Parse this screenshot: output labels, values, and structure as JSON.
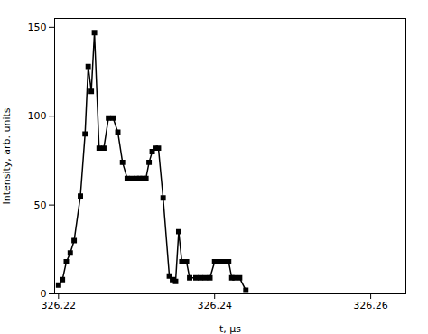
{
  "chart_data": {
    "type": "line",
    "x": [
      326.22,
      326.2205,
      326.221,
      326.2215,
      326.222,
      326.2228,
      326.2234,
      326.2238,
      326.2242,
      326.2246,
      326.2252,
      326.2258,
      326.2264,
      326.227,
      326.2276,
      326.2282,
      326.2288,
      326.2294,
      326.23,
      326.2304,
      326.2308,
      326.2312,
      326.2316,
      326.232,
      326.2324,
      326.2328,
      326.2334,
      326.2342,
      326.2346,
      326.235,
      326.2354,
      326.2358,
      326.2364,
      326.2368,
      326.2376,
      326.2382,
      326.2388,
      326.2394,
      326.24,
      326.2406,
      326.241,
      326.2414,
      326.2418,
      326.2422,
      326.2426,
      326.2432,
      326.244
    ],
    "values": [
      5,
      8,
      18,
      23,
      30,
      55,
      90,
      128,
      114,
      147,
      82,
      82,
      99,
      99,
      91,
      74,
      65,
      65,
      65,
      65,
      65,
      65,
      74,
      80,
      82,
      82,
      54,
      10,
      8,
      7,
      35,
      18,
      18,
      9,
      9,
      9,
      9,
      9,
      18,
      18,
      18,
      18,
      18,
      9,
      9,
      9,
      2
    ],
    "xlabel": "t, μs",
    "ylabel": "Intensity, arb. units",
    "xlim": [
      326.2195,
      326.2645
    ],
    "ylim": [
      0,
      155
    ],
    "xticks": [
      326.22,
      326.24,
      326.26
    ],
    "yticks": [
      0,
      50,
      100,
      150
    ],
    "color": "#000000",
    "marker": "square"
  }
}
